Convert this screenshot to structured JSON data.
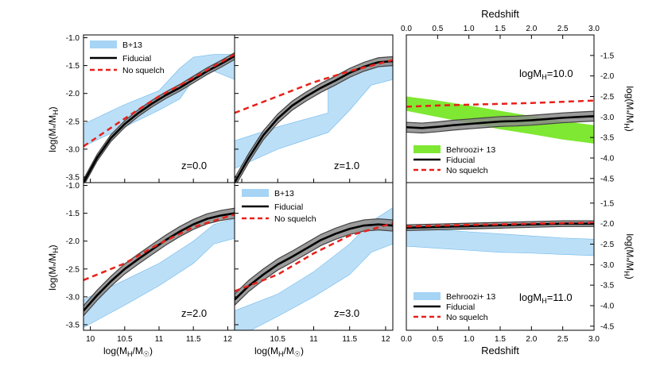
{
  "colors": {
    "blue": "#a6d4f5",
    "blue_edge": "#6db8ea",
    "green": "#7fe832",
    "gray": "#8a8a8a",
    "gray_edge": "#444444",
    "red": "#e8201a",
    "black": "#000000"
  },
  "labels": {
    "left_xlabel": "log(M",
    "left_ylabel": "log(M",
    "top_xlabel": "Redshift",
    "bottom_xlabel": "Redshift",
    "right_ylabel": "log(M"
  },
  "chart_data": [
    {
      "type": "line",
      "title": "z=0.0",
      "xlabel": "log(MH/M☉)",
      "ylabel": "log(M*/MH)",
      "xlim": [
        9.9,
        12.1
      ],
      "ylim": [
        -3.6,
        -0.95
      ],
      "xticks": [
        10,
        10.5,
        11,
        11.5,
        12
      ],
      "yticks": [
        -3.5,
        -3.0,
        -2.5,
        -2.0,
        -1.5,
        -1.0
      ],
      "legend": [
        "B+13",
        "Fiducial",
        "No squelch"
      ],
      "legend_position": "top-left",
      "series": [
        {
          "name": "B+13",
          "kind": "band",
          "x": [
            9.9,
            10.5,
            11.0,
            11.3,
            11.5,
            11.8,
            12.1
          ],
          "lower": [
            -2.95,
            -2.6,
            -2.3,
            -2.1,
            -1.75,
            -1.6,
            -1.75
          ],
          "upper": [
            -2.55,
            -2.2,
            -1.95,
            -1.55,
            -1.35,
            -1.3,
            -1.3
          ]
        },
        {
          "name": "Fiducial",
          "kind": "line",
          "x": [
            9.9,
            10.1,
            10.3,
            10.5,
            10.7,
            10.9,
            11.1,
            11.3,
            11.5,
            11.7,
            11.9,
            12.1
          ],
          "y": [
            -3.6,
            -3.15,
            -2.8,
            -2.55,
            -2.35,
            -2.18,
            -2.03,
            -1.9,
            -1.75,
            -1.6,
            -1.47,
            -1.33
          ],
          "spread": 0.06
        },
        {
          "name": "No squelch",
          "kind": "dashed",
          "x": [
            9.9,
            10.5,
            11.0,
            11.5,
            12.1
          ],
          "y": [
            -2.95,
            -2.45,
            -2.05,
            -1.72,
            -1.3
          ]
        }
      ]
    },
    {
      "type": "line",
      "title": "z=1.0",
      "xlabel": "",
      "ylabel": "",
      "xlim": [
        9.9,
        12.1
      ],
      "ylim": [
        -3.6,
        -0.95
      ],
      "series": [
        {
          "name": "B+13",
          "kind": "band",
          "x": [
            9.9,
            10.5,
            11.2,
            11.2,
            11.5,
            11.8,
            12.1
          ],
          "lower": [
            -3.35,
            -3.0,
            -2.7,
            -2.7,
            -2.3,
            -1.85,
            -1.75
          ],
          "upper": [
            -2.85,
            -2.6,
            -2.35,
            -1.9,
            -1.65,
            -1.45,
            -1.4
          ]
        },
        {
          "name": "Fiducial",
          "kind": "line",
          "x": [
            9.9,
            10.1,
            10.3,
            10.5,
            10.7,
            10.9,
            11.1,
            11.3,
            11.5,
            11.7,
            11.9,
            12.1
          ],
          "y": [
            -3.6,
            -3.15,
            -2.75,
            -2.45,
            -2.22,
            -2.05,
            -1.9,
            -1.77,
            -1.63,
            -1.52,
            -1.44,
            -1.42
          ],
          "spread": 0.08
        },
        {
          "name": "No squelch",
          "kind": "dashed",
          "x": [
            9.9,
            10.5,
            11.0,
            11.5,
            12.1
          ],
          "y": [
            -2.35,
            -2.05,
            -1.8,
            -1.6,
            -1.4
          ]
        }
      ]
    },
    {
      "type": "line",
      "title": "z=2.0",
      "xlabel": "log(MH/M☉)",
      "ylabel": "log(M*/MH)",
      "xlim": [
        9.9,
        12.1
      ],
      "ylim": [
        -3.6,
        -0.95
      ],
      "xticks": [
        10,
        10.5,
        11,
        11.5,
        12
      ],
      "yticks": [
        -3.5,
        -3.0,
        -2.5,
        -2.0,
        -1.5,
        -1.0
      ],
      "series": [
        {
          "name": "B+13",
          "kind": "band",
          "x": [
            9.9,
            10.5,
            11.0,
            11.5,
            11.8,
            12.1
          ],
          "lower": [
            -3.55,
            -3.15,
            -2.8,
            -2.4,
            -2.05,
            -1.95
          ],
          "upper": [
            -3.05,
            -2.7,
            -2.4,
            -2.0,
            -1.7,
            -1.6
          ]
        },
        {
          "name": "Fiducial",
          "kind": "line",
          "x": [
            9.9,
            10.1,
            10.3,
            10.5,
            10.7,
            10.9,
            11.1,
            11.3,
            11.5,
            11.7,
            11.9,
            12.1
          ],
          "y": [
            -3.25,
            -2.97,
            -2.72,
            -2.5,
            -2.32,
            -2.15,
            -1.98,
            -1.83,
            -1.7,
            -1.6,
            -1.54,
            -1.5
          ],
          "spread": 0.09
        },
        {
          "name": "No squelch",
          "kind": "dashed",
          "x": [
            9.9,
            10.5,
            11.0,
            11.5,
            12.1
          ],
          "y": [
            -2.7,
            -2.4,
            -2.05,
            -1.75,
            -1.52
          ]
        }
      ]
    },
    {
      "type": "line",
      "title": "z=3.0",
      "xlabel": "log(MH/M☉)",
      "ylabel": "",
      "xlim": [
        9.9,
        12.1
      ],
      "ylim": [
        -3.6,
        -0.95
      ],
      "xticks": [
        10.5,
        11,
        11.5,
        12
      ],
      "legend": [
        "B+13",
        "Fiducial",
        "No squelch"
      ],
      "legend_position": "top-left",
      "series": [
        {
          "name": "B+13",
          "kind": "band",
          "x": [
            9.9,
            10.5,
            11.0,
            11.5,
            11.8,
            12.1
          ],
          "lower": [
            -3.75,
            -3.35,
            -3.0,
            -2.6,
            -2.2,
            -2.05
          ],
          "upper": [
            -3.25,
            -2.95,
            -2.55,
            -2.05,
            -1.65,
            -1.4
          ]
        },
        {
          "name": "Fiducial",
          "kind": "line",
          "x": [
            9.9,
            10.1,
            10.3,
            10.5,
            10.7,
            10.9,
            11.1,
            11.3,
            11.5,
            11.7,
            11.9,
            12.1
          ],
          "y": [
            -3.05,
            -2.8,
            -2.6,
            -2.42,
            -2.28,
            -2.13,
            -1.98,
            -1.87,
            -1.78,
            -1.72,
            -1.7,
            -1.72
          ],
          "spread": 0.1
        },
        {
          "name": "No squelch",
          "kind": "dashed",
          "x": [
            9.9,
            10.5,
            11.0,
            11.5,
            12.1
          ],
          "y": [
            -2.9,
            -2.6,
            -2.22,
            -1.9,
            -1.68
          ]
        }
      ]
    },
    {
      "type": "line",
      "title": "logMH=10.0",
      "xlabel": "Redshift",
      "ylabel": "log(M*/MH)",
      "xlim": [
        0.0,
        3.0
      ],
      "ylim": [
        -4.6,
        -1.0
      ],
      "xticks": [
        0.0,
        0.5,
        1.0,
        1.5,
        2.0,
        2.5,
        3.0
      ],
      "yticks": [
        -1.5,
        -2.0,
        -2.5,
        -3.0,
        -3.5,
        -4.0,
        -4.5
      ],
      "legend": [
        "Behroozi+ 13",
        "Fiducial",
        "No squelch"
      ],
      "legend_position": "bottom-left",
      "series": [
        {
          "name": "Behroozi+ 13",
          "kind": "band",
          "x": [
            0.0,
            0.5,
            1.0,
            1.5,
            2.0,
            2.5,
            3.0
          ],
          "lower": [
            -2.85,
            -3.0,
            -3.15,
            -3.3,
            -3.42,
            -3.55,
            -3.65
          ],
          "upper": [
            -2.5,
            -2.6,
            -2.72,
            -2.85,
            -2.98,
            -3.1,
            -3.2
          ]
        },
        {
          "name": "Fiducial",
          "kind": "line",
          "x": [
            0.0,
            0.25,
            0.5,
            0.75,
            1.0,
            1.25,
            1.5,
            1.75,
            2.0,
            2.25,
            2.5,
            2.75,
            3.0
          ],
          "y": [
            -3.25,
            -3.27,
            -3.24,
            -3.2,
            -3.17,
            -3.14,
            -3.11,
            -3.1,
            -3.08,
            -3.05,
            -3.02,
            -3.0,
            -2.98
          ],
          "spread": 0.12
        },
        {
          "name": "No squelch",
          "kind": "dashed",
          "x": [
            0.0,
            0.5,
            1.0,
            1.5,
            2.0,
            2.5,
            3.0
          ],
          "y": [
            -2.75,
            -2.72,
            -2.7,
            -2.68,
            -2.66,
            -2.63,
            -2.6
          ]
        }
      ]
    },
    {
      "type": "line",
      "title": "logMH=11.0",
      "xlabel": "Redshift",
      "ylabel": "log(M*/MH)",
      "xlim": [
        0.0,
        3.0
      ],
      "ylim": [
        -4.6,
        -1.0
      ],
      "xticks": [
        0.0,
        0.5,
        1.0,
        1.5,
        2.0,
        2.5,
        3.0
      ],
      "yticks": [
        -1.5,
        -2.0,
        -2.5,
        -3.0,
        -3.5,
        -4.0,
        -4.5
      ],
      "legend": [
        "Behroozi+ 13",
        "Fiducial",
        "No squelch"
      ],
      "legend_position": "bottom-left",
      "series": [
        {
          "name": "Behroozi+ 13",
          "kind": "band",
          "x": [
            0.0,
            0.5,
            1.0,
            1.5,
            2.0,
            2.5,
            3.0
          ],
          "lower": [
            -2.55,
            -2.6,
            -2.65,
            -2.7,
            -2.72,
            -2.75,
            -2.78
          ],
          "upper": [
            -2.1,
            -2.15,
            -2.2,
            -2.25,
            -2.3,
            -2.35,
            -2.38
          ]
        },
        {
          "name": "Fiducial",
          "kind": "line",
          "x": [
            0.0,
            0.5,
            1.0,
            1.5,
            2.0,
            2.5,
            3.0
          ],
          "y": [
            -2.1,
            -2.08,
            -2.06,
            -2.04,
            -2.02,
            -2.0,
            -2.0
          ],
          "spread": 0.07
        },
        {
          "name": "No squelch",
          "kind": "dashed",
          "x": [
            0.0,
            0.5,
            1.0,
            1.5,
            2.0,
            2.5,
            3.0
          ],
          "y": [
            -2.07,
            -2.05,
            -2.03,
            -2.02,
            -2.0,
            -1.99,
            -1.98
          ]
        }
      ]
    }
  ]
}
